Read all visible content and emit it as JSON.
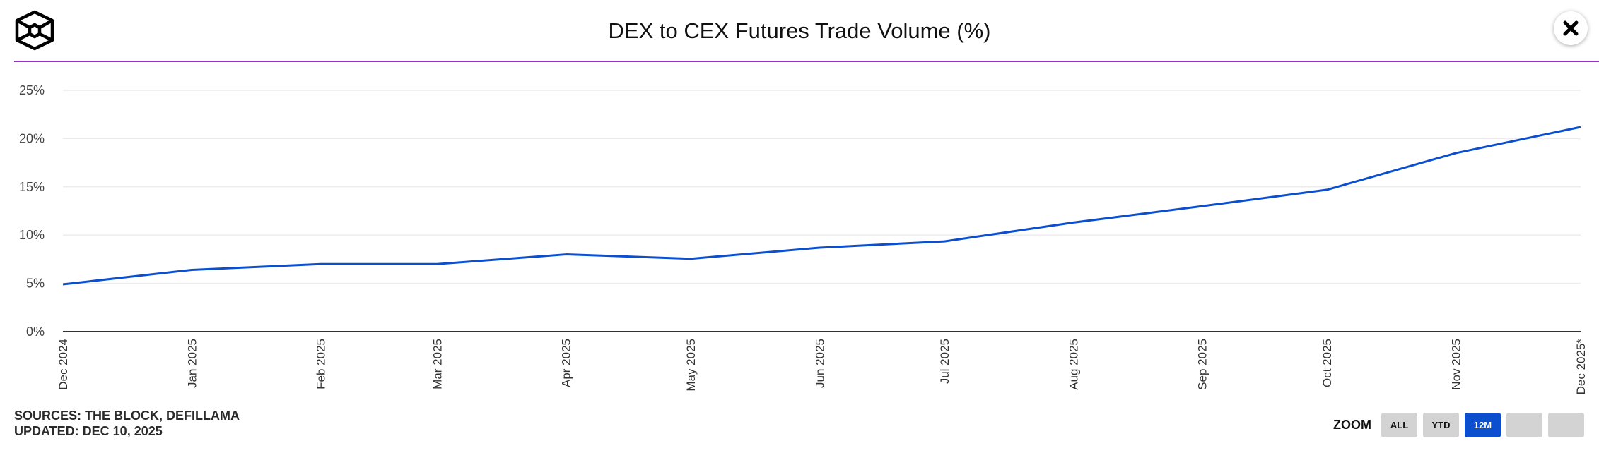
{
  "header": {
    "title": "DEX to CEX Futures Trade Volume (%)",
    "logo_icon": "hexagon-cube-logo",
    "close_icon": "close-x-icon",
    "rule_color": "#9b2fc9"
  },
  "chart_data": {
    "type": "line",
    "title": "DEX to CEX Futures Trade Volume (%)",
    "xlabel": "",
    "ylabel": "",
    "x": [
      "2024-12-01",
      "2025-01-01",
      "2025-02-01",
      "2025-03-01",
      "2025-04-01",
      "2025-05-01",
      "2025-06-01",
      "2025-07-01",
      "2025-08-01",
      "2025-09-01",
      "2025-10-01",
      "2025-11-01",
      "2025-12-01"
    ],
    "categories": [
      "Dec 2024",
      "Jan 2025",
      "Feb 2025",
      "Mar 2025",
      "Apr 2025",
      "May 2025",
      "Jun 2025",
      "Jul 2025",
      "Aug 2025",
      "Sep 2025",
      "Oct 2025",
      "Nov 2025",
      "Dec 2025*"
    ],
    "values": [
      4.9,
      6.4,
      7.0,
      7.0,
      8.0,
      7.55,
      8.7,
      9.35,
      11.3,
      13.0,
      14.7,
      18.5,
      21.2
    ],
    "yticks": [
      "0%",
      "5%",
      "10%",
      "15%",
      "20%",
      "25%"
    ],
    "ylim": [
      0,
      25
    ],
    "grid": true,
    "line_color": "#0b4fcf"
  },
  "footer": {
    "sources_prefix": "SOURCES: THE BLOCK, ",
    "sources_link": "DEFILLAMA",
    "updated": "UPDATED: DEC 10, 2025"
  },
  "zoom": {
    "label": "ZOOM",
    "buttons": [
      "ALL",
      "YTD",
      "12M",
      "",
      ""
    ],
    "active": "12M",
    "active_color": "#0b4fcf"
  }
}
